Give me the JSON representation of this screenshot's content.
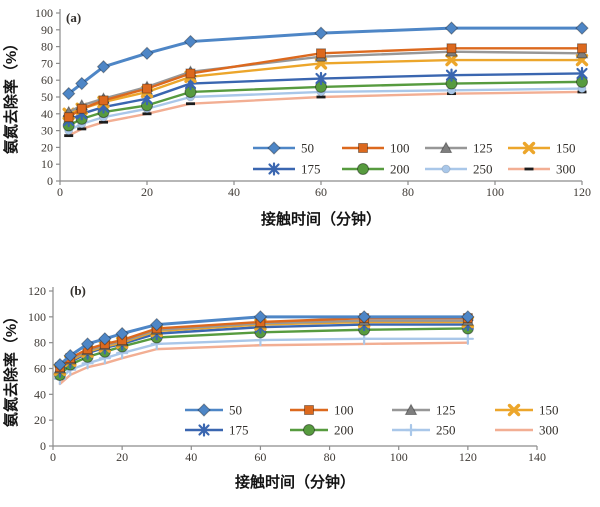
{
  "figure": {
    "background": "#ffffff",
    "axis_color": "#8c8c8c",
    "tick_text_color": "#3f3a35"
  },
  "chart_data": [
    {
      "id": "a",
      "type": "line",
      "panel_label": "(a)",
      "xlabel": "接触时间（分钟）",
      "ylabel": "氨氮去除率（%）",
      "xlim": [
        0,
        120
      ],
      "xticks": [
        0,
        20,
        40,
        60,
        80,
        100,
        120
      ],
      "ylim": [
        0,
        100
      ],
      "yticks": [
        0,
        10,
        20,
        30,
        40,
        50,
        60,
        70,
        80,
        90,
        100
      ],
      "grid": false,
      "legend_position": "inside-bottom-center",
      "x": [
        2,
        5,
        10,
        20,
        30,
        60,
        90,
        120
      ],
      "series": [
        {
          "name": "50",
          "color": "#4E86C6",
          "marker": "diamond",
          "values": [
            52,
            58,
            68,
            76,
            83,
            88,
            91,
            91
          ]
        },
        {
          "name": "100",
          "color": "#DC691E",
          "marker": "square",
          "values": [
            38,
            43,
            48,
            55,
            64,
            76,
            79,
            79
          ]
        },
        {
          "name": "125",
          "color": "#979797",
          "marker": "triangle",
          "values": [
            41,
            45,
            49,
            56,
            65,
            74,
            77,
            76
          ]
        },
        {
          "name": "150",
          "color": "#ECA62B",
          "marker": "xmark",
          "values": [
            40,
            43,
            47,
            53,
            62,
            70,
            72,
            72
          ]
        },
        {
          "name": "175",
          "color": "#3A66B0",
          "marker": "asterisk",
          "values": [
            36,
            40,
            44,
            49,
            58,
            61,
            63,
            64
          ]
        },
        {
          "name": "200",
          "color": "#579B3F",
          "marker": "circle",
          "values": [
            33,
            37,
            41,
            45,
            53,
            56,
            58,
            59
          ]
        },
        {
          "name": "250",
          "color": "#A9C7E9",
          "marker": "circle-small",
          "values": [
            30,
            34,
            38,
            43,
            50,
            53,
            54,
            55
          ]
        },
        {
          "name": "300",
          "color": "#F2AE93",
          "marker": "dash-black",
          "values": [
            27,
            31,
            35,
            40,
            46,
            50,
            52,
            53
          ]
        }
      ]
    },
    {
      "id": "b",
      "type": "line",
      "panel_label": "(b)",
      "xlabel": "接触时间（分钟）",
      "ylabel": "氨氮去除率（%）",
      "xlim": [
        0,
        140
      ],
      "xticks": [
        0,
        20,
        40,
        60,
        80,
        100,
        120,
        140
      ],
      "ylim": [
        0,
        120
      ],
      "yticks": [
        0,
        20,
        40,
        60,
        80,
        100,
        120
      ],
      "grid": false,
      "legend_position": "inside-bottom-center",
      "x": [
        2,
        5,
        10,
        15,
        20,
        30,
        60,
        90,
        120
      ],
      "series": [
        {
          "name": "50",
          "color": "#4E86C6",
          "marker": "diamond",
          "values": [
            63,
            70,
            79,
            83,
            87,
            94,
            100,
            100,
            100
          ]
        },
        {
          "name": "100",
          "color": "#DC691E",
          "marker": "square",
          "values": [
            61,
            68,
            75,
            79,
            82,
            91,
            96,
            99,
            99
          ]
        },
        {
          "name": "125",
          "color": "#979797",
          "marker": "triangle",
          "values": [
            60,
            67,
            74,
            78,
            81,
            90,
            95,
            97,
            97
          ]
        },
        {
          "name": "150",
          "color": "#ECA62B",
          "marker": "xmark",
          "values": [
            59,
            66,
            73,
            77,
            80,
            89,
            94,
            96,
            96
          ]
        },
        {
          "name": "175",
          "color": "#3A66B0",
          "marker": "asterisk",
          "values": [
            58,
            65,
            72,
            76,
            79,
            87,
            92,
            94,
            94
          ]
        },
        {
          "name": "200",
          "color": "#579B3F",
          "marker": "circle",
          "values": [
            55,
            63,
            69,
            73,
            77,
            84,
            88,
            90,
            91
          ]
        },
        {
          "name": "250",
          "color": "#A9C7E9",
          "marker": "plus",
          "values": [
            52,
            59,
            64,
            68,
            72,
            79,
            82,
            83,
            83
          ]
        },
        {
          "name": "300",
          "color": "#F2AE93",
          "marker": "none",
          "values": [
            48,
            55,
            61,
            64,
            68,
            75,
            78,
            79,
            80
          ]
        }
      ]
    }
  ]
}
